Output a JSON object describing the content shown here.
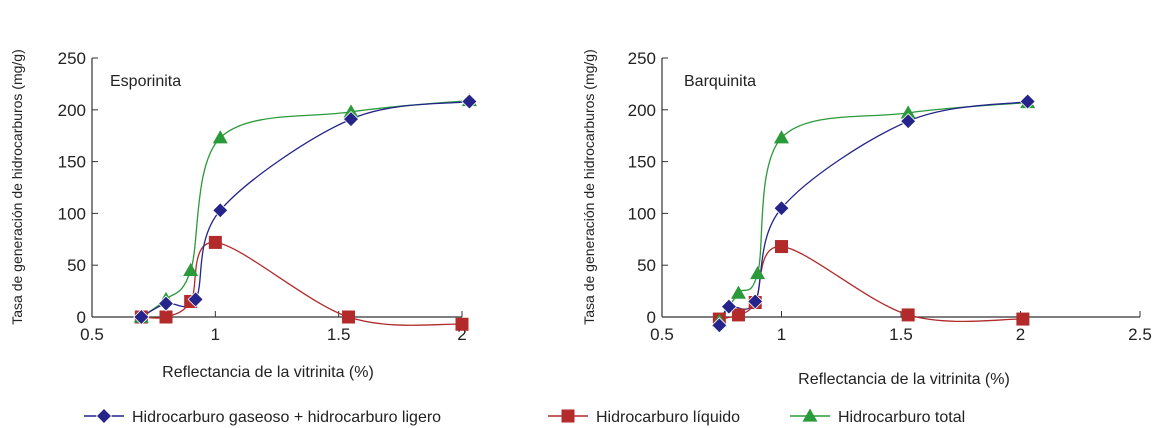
{
  "chart_data": [
    {
      "type": "line",
      "title": "",
      "panel_label": "Esporinita",
      "xlabel": "Reflectancia de la vitrinita (%)",
      "ylabel": "Tasa de generación de hidrocarburos (mg/g)",
      "xlim": [
        0.5,
        2.0
      ],
      "ylim": [
        0,
        250
      ],
      "xticks": [
        "0.5",
        "1",
        "1.5",
        "2"
      ],
      "xtick_values": [
        0.5,
        1.0,
        1.5,
        2.0
      ],
      "yticks": [
        "0",
        "50",
        "100",
        "150",
        "200",
        "250"
      ],
      "ytick_values": [
        0,
        50,
        100,
        150,
        200,
        250
      ],
      "series": [
        {
          "name": "Hidrocarburo gaseoso + hidrocarburo ligero",
          "color": "#24248a",
          "marker": "diamond",
          "x": [
            0.7,
            0.8,
            0.92,
            1.02,
            1.55,
            2.03
          ],
          "y": [
            0,
            13,
            17,
            103,
            191,
            208
          ]
        },
        {
          "name": "Hidrocarburo líquido",
          "color": "#b32a2a",
          "marker": "square",
          "x": [
            0.7,
            0.8,
            0.9,
            1.0,
            1.54,
            2.0
          ],
          "y": [
            0,
            0,
            15,
            72,
            0,
            -7
          ]
        },
        {
          "name": "Hidrocarburo total",
          "color": "#2a9a3a",
          "marker": "triangle",
          "x": [
            0.7,
            0.8,
            0.9,
            1.02,
            1.55,
            2.03
          ],
          "y": [
            0,
            17,
            45,
            173,
            198,
            209
          ]
        }
      ]
    },
    {
      "type": "line",
      "title": "",
      "panel_label": "Barquinita",
      "xlabel": "Reflectancia de la vitrinita (%)",
      "ylabel": "Tasa de generación de hidrocarburos (mg/g)",
      "xlim": [
        0.5,
        2.5
      ],
      "ylim": [
        0,
        250
      ],
      "xticks": [
        "0.5",
        "1",
        "1.5",
        "2",
        "2.5"
      ],
      "xtick_values": [
        0.5,
        1.0,
        1.5,
        2.0,
        2.5
      ],
      "yticks": [
        "0",
        "50",
        "100",
        "150",
        "200",
        "250"
      ],
      "ytick_values": [
        0,
        50,
        100,
        150,
        200,
        250
      ],
      "series": [
        {
          "name": "Hidrocarburo gaseoso + hidrocarburo ligero",
          "color": "#24248a",
          "marker": "diamond",
          "x": [
            0.74,
            0.78,
            0.89,
            1.0,
            1.53,
            2.03
          ],
          "y": [
            -8,
            10,
            15,
            105,
            189,
            208
          ]
        },
        {
          "name": "Hidrocarburo líquido",
          "color": "#b32a2a",
          "marker": "square",
          "x": [
            0.74,
            0.82,
            0.89,
            1.0,
            1.53,
            2.01
          ],
          "y": [
            -2,
            2,
            14,
            68,
            2,
            -2
          ]
        },
        {
          "name": "Hidrocarburo total",
          "color": "#2a9a3a",
          "marker": "triangle",
          "x": [
            0.74,
            0.82,
            0.9,
            1.0,
            1.53,
            2.03
          ],
          "y": [
            -4,
            23,
            42,
            173,
            197,
            207
          ]
        }
      ]
    }
  ],
  "legend": {
    "placement": "bottom",
    "items": [
      {
        "name": "Hidrocarburo gaseoso + hidrocarburo ligero",
        "color": "#24248a",
        "marker": "diamond"
      },
      {
        "name": "Hidrocarburo líquido",
        "color": "#b32a2a",
        "marker": "square"
      },
      {
        "name": "Hidrocarburo total",
        "color": "#2a9a3a",
        "marker": "triangle"
      }
    ]
  }
}
